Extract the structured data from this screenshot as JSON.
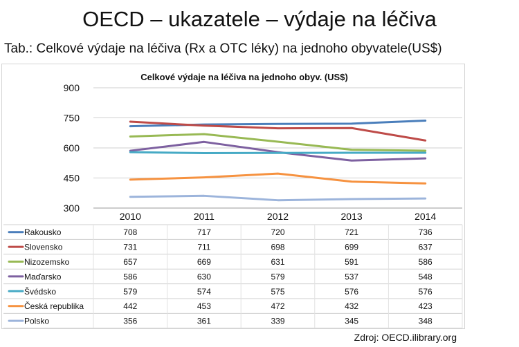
{
  "slide": {
    "title": "OECD – ukazatele – výdaje na léčiva",
    "subtitle": "Tab.: Celkové výdaje na léčiva (Rx a OTC léky) na jednoho obyvatele(US$)",
    "source": "Zdroj: OECD.ilibrary.org"
  },
  "chart_data": {
    "type": "line",
    "title": "Celkové výdaje na léčiva na jednoho obyv. (US$)",
    "xlabel": "",
    "ylabel": "",
    "x": [
      "2010",
      "2011",
      "2012",
      "2013",
      "2014"
    ],
    "ylim": [
      300,
      900
    ],
    "yticks": [
      300,
      450,
      600,
      750,
      900
    ],
    "grid": true,
    "legend": "data-table-below",
    "series": [
      {
        "name": "Rakousko",
        "color": "#4a7ebb",
        "values": [
          708,
          717,
          720,
          721,
          736
        ]
      },
      {
        "name": "Slovensko",
        "color": "#be4b48",
        "values": [
          731,
          711,
          698,
          699,
          637
        ]
      },
      {
        "name": "Nizozemsko",
        "color": "#98b954",
        "values": [
          657,
          669,
          631,
          591,
          586
        ]
      },
      {
        "name": "Maďarsko",
        "color": "#7d60a0",
        "values": [
          586,
          630,
          579,
          537,
          548
        ]
      },
      {
        "name": "Švédsko",
        "color": "#46aac5",
        "values": [
          579,
          574,
          575,
          576,
          576
        ]
      },
      {
        "name": "Česká republika",
        "color": "#f69240",
        "values": [
          442,
          453,
          472,
          432,
          423
        ]
      },
      {
        "name": "Polsko",
        "color": "#9cb4db",
        "values": [
          356,
          361,
          339,
          345,
          348
        ]
      }
    ]
  }
}
